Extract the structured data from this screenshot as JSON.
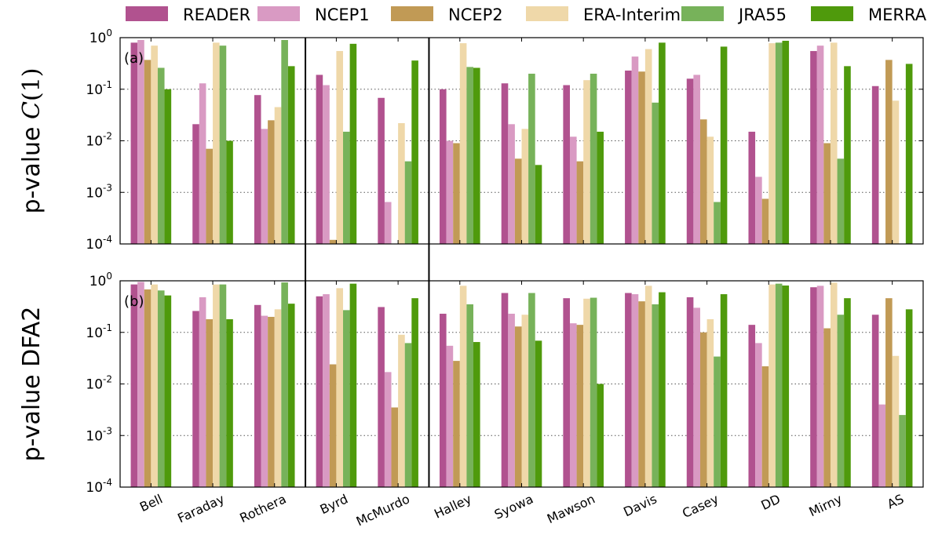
{
  "chart_data": {
    "type": "bar",
    "y_scale": "log",
    "ylim": [
      0.0001,
      1
    ],
    "y_ticks": [
      {
        "value": 0.0001,
        "base": "10",
        "exp": "-4"
      },
      {
        "value": 0.001,
        "base": "10",
        "exp": "-3"
      },
      {
        "value": 0.01,
        "base": "10",
        "exp": "-2"
      },
      {
        "value": 0.1,
        "base": "10",
        "exp": "-1"
      },
      {
        "value": 1,
        "base": "10",
        "exp": "0"
      }
    ],
    "grid": "horizontal-dotted",
    "legend_placement": "top",
    "categories": [
      "Bell",
      "Faraday",
      "Rothera",
      "Byrd",
      "McMurdo",
      "Halley",
      "Syowa",
      "Mawson",
      "Davis",
      "Casey",
      "DD",
      "Mirny",
      "AS"
    ],
    "group_separators_after": [
      2,
      4
    ],
    "series": [
      {
        "name": "READER",
        "color": "#b1528f"
      },
      {
        "name": "NCEP1",
        "color": "#d99ac3"
      },
      {
        "name": "NCEP2",
        "color": "#c19a55"
      },
      {
        "name": "ERA-Interim",
        "color": "#efd8a9"
      },
      {
        "name": "JRA55",
        "color": "#77b25a"
      },
      {
        "name": "MERRA",
        "color": "#4f9a0c"
      }
    ],
    "panels": [
      {
        "tag": "(a)",
        "ylabel_prefix": "p-value ",
        "ylabel_math": "C(1)",
        "values": [
          [
            0.8,
            0.021,
            0.077,
            0.19,
            0.068,
            0.1,
            0.13,
            0.12,
            0.23,
            0.16,
            0.015,
            0.55,
            0.115
          ],
          [
            0.9,
            0.13,
            0.017,
            0.12,
            0.00065,
            0.01,
            0.021,
            0.012,
            0.43,
            0.19,
            0.002,
            0.7,
            null
          ],
          [
            0.37,
            0.007,
            0.025,
            0.00012,
            null,
            0.009,
            0.0045,
            0.004,
            0.22,
            0.026,
            0.00075,
            0.009,
            0.37
          ],
          [
            0.7,
            0.8,
            0.045,
            0.55,
            0.022,
            0.78,
            0.017,
            0.15,
            0.6,
            0.012,
            0.78,
            0.8,
            0.06
          ],
          [
            0.26,
            0.7,
            0.9,
            0.015,
            0.004,
            0.27,
            0.2,
            0.2,
            0.055,
            0.00065,
            0.8,
            0.0045,
            null
          ],
          [
            0.1,
            0.01,
            0.28,
            0.76,
            0.36,
            0.26,
            0.0034,
            0.015,
            0.8,
            0.67,
            0.87,
            0.28,
            0.31
          ]
        ]
      },
      {
        "tag": "(b)",
        "ylabel_prefix": "p-value DFA2",
        "ylabel_math": "",
        "values": [
          [
            0.85,
            0.26,
            0.34,
            0.5,
            0.31,
            0.23,
            0.58,
            0.46,
            0.58,
            0.48,
            0.14,
            0.75,
            0.22
          ],
          [
            0.95,
            0.48,
            0.21,
            0.55,
            0.017,
            0.055,
            0.23,
            0.15,
            0.55,
            0.3,
            0.062,
            0.8,
            0.004
          ],
          [
            0.68,
            0.18,
            0.2,
            0.024,
            0.0035,
            0.028,
            0.13,
            0.14,
            0.4,
            0.1,
            0.022,
            0.12,
            0.46
          ],
          [
            0.85,
            0.85,
            0.28,
            0.72,
            0.09,
            0.8,
            0.22,
            0.45,
            0.8,
            0.18,
            0.85,
            0.92,
            0.035
          ],
          [
            0.65,
            0.85,
            0.93,
            0.27,
            0.062,
            0.35,
            0.58,
            0.47,
            0.35,
            0.034,
            0.88,
            0.22,
            0.0025
          ],
          [
            0.52,
            0.18,
            0.36,
            0.88,
            0.46,
            0.065,
            0.069,
            0.01,
            0.6,
            0.55,
            0.81,
            0.46,
            0.28
          ]
        ]
      }
    ]
  }
}
